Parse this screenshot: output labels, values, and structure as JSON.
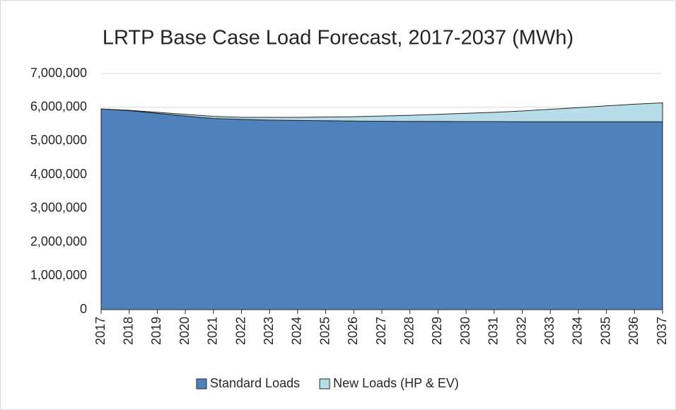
{
  "chart_data": {
    "type": "stacked_area",
    "title": "LRTP Base Case Load Forecast, 2017-2037 (MWh)",
    "categories": [
      "2017",
      "2018",
      "2019",
      "2020",
      "2021",
      "2022",
      "2023",
      "2024",
      "2025",
      "2026",
      "2027",
      "2028",
      "2029",
      "2030",
      "2031",
      "2032",
      "2033",
      "2034",
      "2035",
      "2036",
      "2037"
    ],
    "series": [
      {
        "name": "Standard Loads",
        "color": "#4f81bd",
        "values": [
          5950000,
          5900000,
          5820000,
          5740000,
          5670000,
          5640000,
          5620000,
          5610000,
          5600000,
          5590000,
          5585000,
          5580000,
          5580000,
          5575000,
          5575000,
          5570000,
          5570000,
          5570000,
          5570000,
          5570000,
          5570000
        ]
      },
      {
        "name": "New Loads (HP & EV)",
        "color": "#b7dee8",
        "values": [
          0,
          10000,
          30000,
          50000,
          60000,
          60000,
          80000,
          90000,
          110000,
          130000,
          155000,
          180000,
          210000,
          245000,
          275000,
          320000,
          370000,
          420000,
          470000,
          520000,
          560000
        ]
      }
    ],
    "ylim": [
      0,
      7000000
    ],
    "yticks": [
      0,
      {
        "value": 1000000,
        "label": "1,000,000"
      },
      {
        "value": 2000000,
        "label": "2,000,000"
      },
      {
        "value": 3000000,
        "label": "3,000,000"
      },
      {
        "value": 4000000,
        "label": "4,000,000"
      },
      {
        "value": 5000000,
        "label": "5,000,000"
      },
      {
        "value": 6000000,
        "label": "6,000,000"
      },
      {
        "value": 7000000,
        "label": "7,000,000"
      }
    ],
    "grid": true,
    "legend": "bottom"
  }
}
